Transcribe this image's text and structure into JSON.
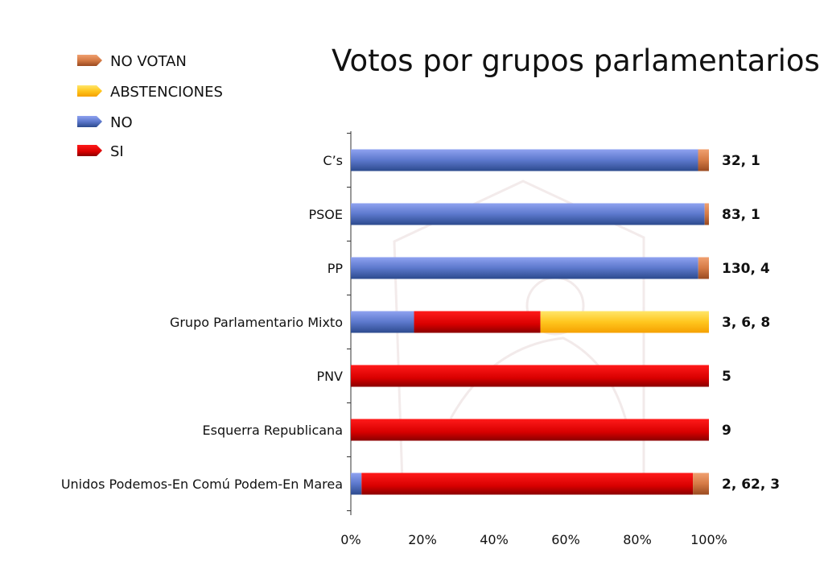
{
  "chart_data": {
    "type": "bar",
    "orientation": "horizontal",
    "stacked": "percent",
    "title": "Votos por grupos parlamentarios",
    "xlabel": "",
    "ylabel": "",
    "xlim": [
      0,
      100
    ],
    "x_ticks": [
      "0%",
      "20%",
      "40%",
      "60%",
      "80%",
      "100%"
    ],
    "grid": false,
    "legend_position": "top-left",
    "categories": [
      "C’s",
      "PSOE",
      "PP",
      "Grupo Parlamentario Mixto",
      "PNV",
      "Esquerra Republicana",
      "Unidos Podemos-En Comú Podem-En Marea"
    ],
    "series": [
      {
        "name": "NO",
        "color": "#4a6fc4",
        "values": [
          32,
          83,
          130,
          3,
          0,
          0,
          2
        ]
      },
      {
        "name": "SI",
        "color": "#d40000",
        "values": [
          0,
          0,
          0,
          6,
          5,
          9,
          62
        ]
      },
      {
        "name": "ABSTENCIONES",
        "color": "#ffc020",
        "values": [
          0,
          0,
          0,
          8,
          0,
          0,
          0
        ]
      },
      {
        "name": "NO VOTAN",
        "color": "#c87a4a",
        "values": [
          1,
          1,
          4,
          0,
          0,
          0,
          3
        ]
      }
    ],
    "legend_order": [
      "NO VOTAN",
      "ABSTENCIONES",
      "NO",
      "SI"
    ],
    "data_labels": [
      "32, 1",
      "83, 1",
      "130, 4",
      "3, 6, 8",
      "5",
      "9",
      "2, 62, 3"
    ]
  }
}
